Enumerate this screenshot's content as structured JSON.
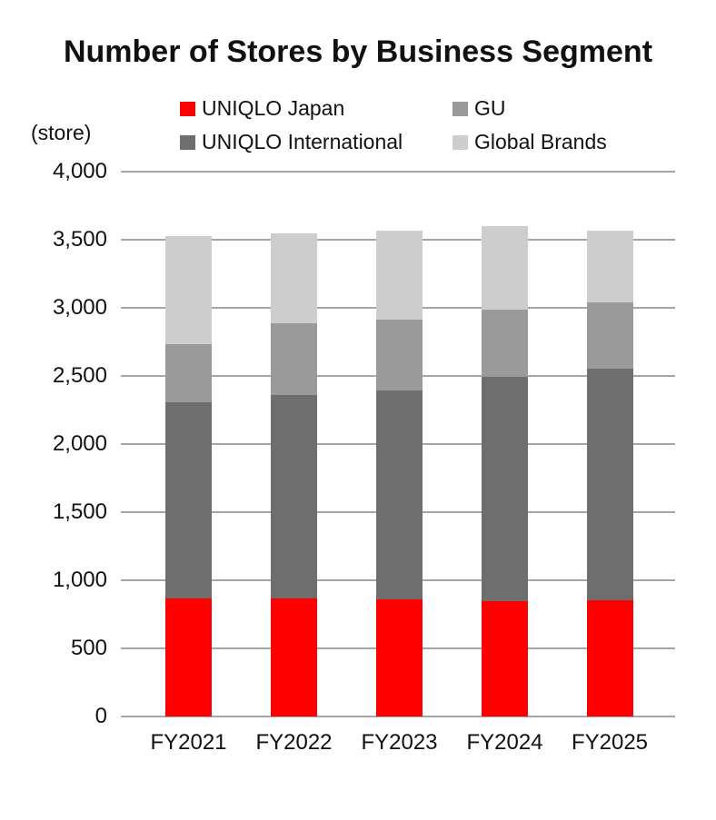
{
  "title": "Number of Stores by Business Segment",
  "unit_label": "(store)",
  "legend": [
    {
      "label": "UNIQLO Japan",
      "color": "#ff0000"
    },
    {
      "label": "GU",
      "color": "#9a9a9a"
    },
    {
      "label": "UNIQLO International",
      "color": "#6e6e6e"
    },
    {
      "label": "Global Brands",
      "color": "#cdcdcd"
    }
  ],
  "colors": {
    "uniqlo_japan": "#ff0000",
    "uniqlo_international": "#6e6e6e",
    "gu": "#9a9a9a",
    "global_brands": "#cdcdcd",
    "gridline": "#a5a5a5",
    "text": "#111111"
  },
  "chart_data": {
    "type": "bar",
    "stacked": true,
    "title": "Number of Stores by Business Segment",
    "ylabel": "(store)",
    "xlabel": "",
    "categories": [
      "FY2021",
      "FY2022",
      "FY2023",
      "FY2024",
      "FY2025"
    ],
    "series": [
      {
        "name": "UNIQLO Japan",
        "color": "#ff0000",
        "values": [
          865,
          870,
          860,
          850,
          855
        ]
      },
      {
        "name": "UNIQLO International",
        "color": "#6e6e6e",
        "values": [
          1440,
          1490,
          1535,
          1645,
          1700
        ]
      },
      {
        "name": "GU",
        "color": "#9a9a9a",
        "values": [
          430,
          530,
          520,
          490,
          485
        ]
      },
      {
        "name": "Global Brands",
        "color": "#cdcdcd",
        "values": [
          795,
          655,
          655,
          615,
          530
        ]
      }
    ],
    "stack_order_bottom_to_top": [
      "UNIQLO Japan",
      "UNIQLO International",
      "GU",
      "Global Brands"
    ],
    "ylim": [
      0,
      4000
    ],
    "ytick_step": 500,
    "ytick_labels_top_to_bottom": [
      "4,000",
      "3,500",
      "3,000",
      "2,500",
      "2,000",
      "1,500",
      "1,000",
      "500",
      "0"
    ],
    "grid": true,
    "legend_position": "top"
  }
}
